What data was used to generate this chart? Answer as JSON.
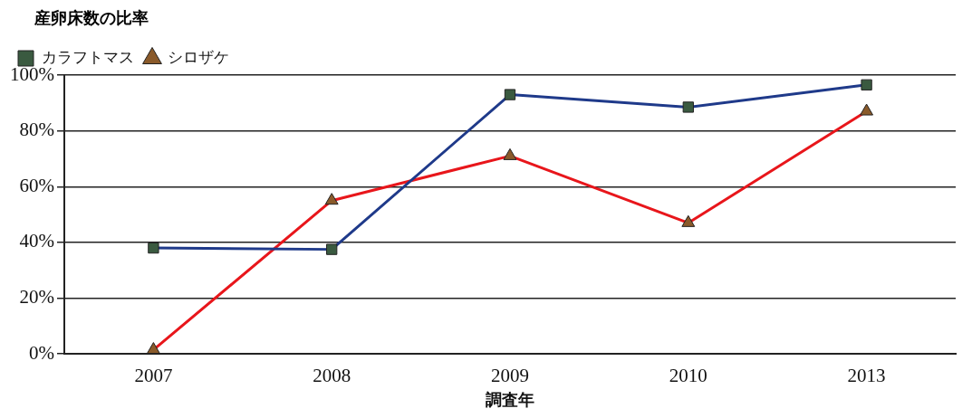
{
  "chart_data": {
    "type": "line",
    "ylabel": "産卵床数の比率",
    "xlabel": "調査年",
    "categories": [
      "2007",
      "2008",
      "2009",
      "2010",
      "2013"
    ],
    "series": [
      {
        "name": "カラフトマス",
        "color": "#1f3a8a",
        "marker": "square",
        "values": [
          38,
          37.5,
          93,
          88.5,
          96.5
        ]
      },
      {
        "name": "シロザケ",
        "color": "#e8161b",
        "marker": "triangle",
        "values": [
          1.5,
          55,
          71,
          47,
          87
        ]
      }
    ],
    "ylim": [
      0,
      100
    ],
    "yticks": [
      {
        "value": 0,
        "label": "0%"
      },
      {
        "value": 20,
        "label": "20%"
      },
      {
        "value": 40,
        "label": "40%"
      },
      {
        "value": 60,
        "label": "60%"
      },
      {
        "value": 80,
        "label": "80%"
      },
      {
        "value": 100,
        "label": "100%"
      }
    ],
    "grid": "y",
    "legend": "top left"
  }
}
